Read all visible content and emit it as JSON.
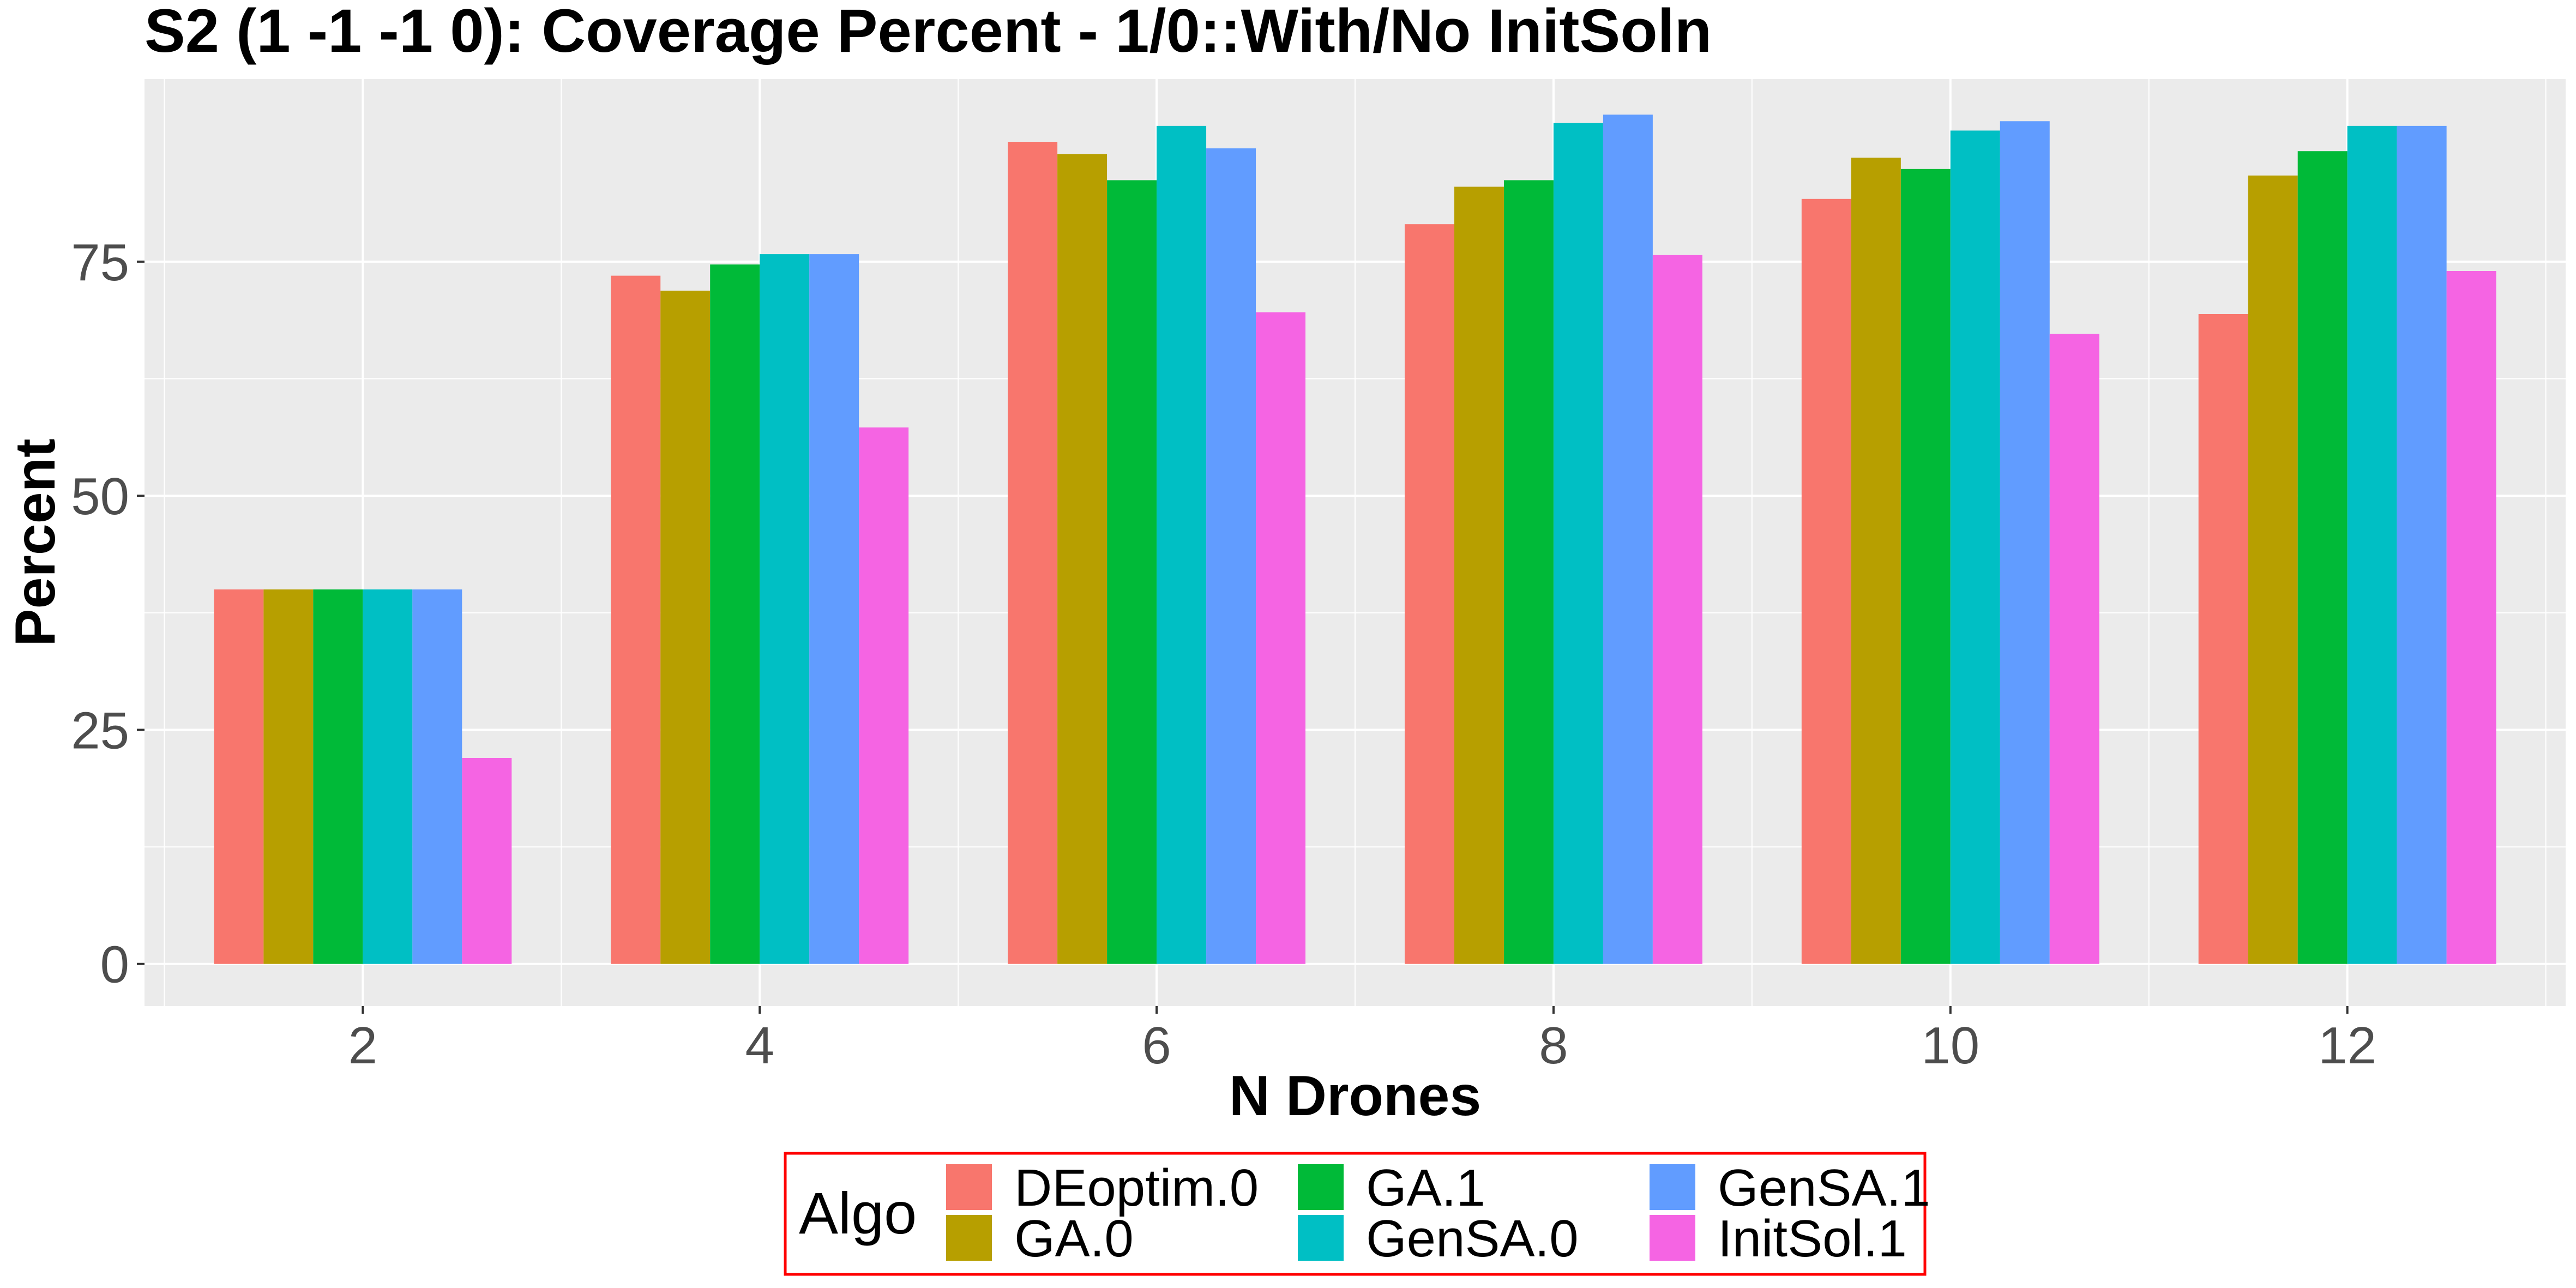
{
  "chart_data": {
    "type": "bar",
    "title": "S2 (1 -1 -1 0): Coverage Percent - 1/0::With/No InitSoln",
    "xlabel": "N Drones",
    "ylabel": "Percent",
    "categories": [
      "2",
      "4",
      "6",
      "8",
      "10",
      "12"
    ],
    "x_numeric": [
      2,
      4,
      6,
      8,
      10,
      12
    ],
    "xlim": [
      0.9,
      13.1
    ],
    "ylim": [
      -4.5,
      94.5
    ],
    "yticks": [
      0,
      25,
      50,
      75
    ],
    "grid": true,
    "legend": {
      "title": "Algo",
      "position": "bottom"
    },
    "series": [
      {
        "name": "DEoptim.0",
        "color": "#F8766D",
        "values": [
          40,
          73.5,
          87.8,
          79.0,
          81.7,
          69.4
        ]
      },
      {
        "name": "GA.0",
        "color": "#B79F00",
        "values": [
          40,
          71.9,
          86.5,
          83.0,
          86.1,
          84.2
        ]
      },
      {
        "name": "GA.1",
        "color": "#00BA38",
        "values": [
          40,
          74.7,
          83.7,
          83.7,
          84.9,
          86.8
        ]
      },
      {
        "name": "GenSA.0",
        "color": "#00BFC4",
        "values": [
          40,
          75.8,
          89.5,
          89.8,
          89.0,
          89.5
        ]
      },
      {
        "name": "GenSA.1",
        "color": "#619CFF",
        "values": [
          40,
          75.8,
          87.1,
          90.7,
          90.0,
          89.5
        ]
      },
      {
        "name": "InitSol.1",
        "color": "#F564E3",
        "values": [
          22,
          57.3,
          69.6,
          75.7,
          67.3,
          74.0
        ]
      }
    ]
  }
}
